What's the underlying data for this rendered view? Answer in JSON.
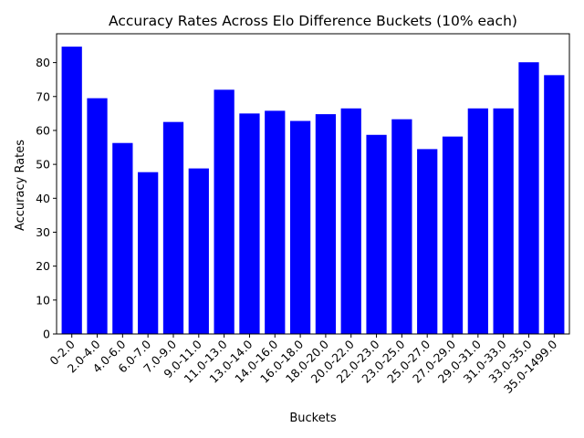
{
  "chart_data": {
    "type": "bar",
    "title": "Accuracy Rates Across Elo Difference Buckets (10% each)",
    "xlabel": "Buckets",
    "ylabel": "Accuracy Rates",
    "ylim": [
      0,
      88.5
    ],
    "yticks": [
      0,
      10,
      20,
      30,
      40,
      50,
      60,
      70,
      80
    ],
    "bar_color": "#0000ff",
    "grid": false,
    "legend": "none",
    "categories": [
      "0-2.0",
      "2.0-4.0",
      "4.0-6.0",
      "6.0-7.0",
      "7.0-9.0",
      "9.0-11.0",
      "11.0-13.0",
      "13.0-14.0",
      "14.0-16.0",
      "16.0-18.0",
      "18.0-20.0",
      "20.0-22.0",
      "22.0-23.0",
      "23.0-25.0",
      "25.0-27.0",
      "27.0-29.0",
      "29.0-31.0",
      "31.0-33.0",
      "33.0-35.0",
      "35.0-1499.0"
    ],
    "values": [
      84.7,
      69.5,
      56.3,
      47.7,
      62.5,
      48.8,
      72.0,
      65.0,
      65.8,
      62.8,
      64.8,
      66.5,
      58.7,
      63.3,
      54.5,
      58.2,
      66.5,
      66.5,
      80.1,
      76.3
    ]
  }
}
